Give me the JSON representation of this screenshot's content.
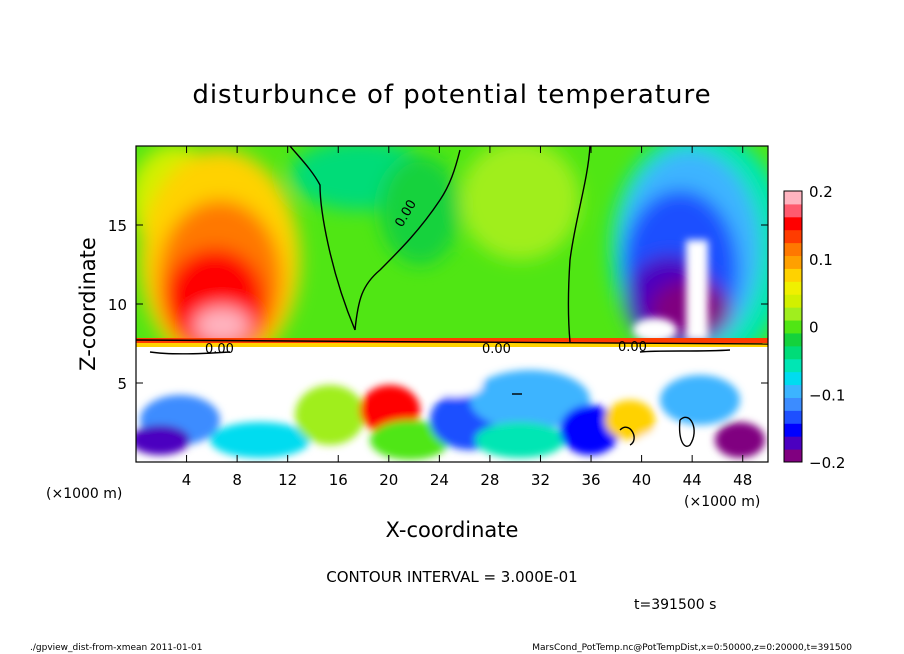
{
  "chart_data": {
    "type": "heatmap",
    "title": "disturbunce of potential temperature",
    "xlabel": "X-coordinate",
    "ylabel": "Z-coordinate",
    "x_unit_label": "(×1000 m)",
    "z_unit_label": "(×1000 m)",
    "xlim": [
      0,
      50
    ],
    "zlim": [
      0,
      20
    ],
    "x_ticks": [
      4,
      8,
      12,
      16,
      20,
      24,
      28,
      32,
      36,
      40,
      44,
      48
    ],
    "z_ticks": [
      5,
      10,
      15
    ],
    "colorbar": {
      "range": [
        -0.2,
        0.2
      ],
      "tick_labels": [
        "0.2",
        "0.1",
        "0",
        "−0.1",
        "−0.2"
      ],
      "tick_values": [
        0.2,
        0.1,
        0,
        -0.1,
        -0.2
      ],
      "colors": [
        "#800080",
        "#4b00c0",
        "#0000ff",
        "#1e50ff",
        "#3c8cff",
        "#3cb4ff",
        "#00dcf0",
        "#00e6b4",
        "#00dc78",
        "#14d23c",
        "#50e614",
        "#a0ee1e",
        "#d2f000",
        "#f0f000",
        "#ffd200",
        "#ffa000",
        "#ff7800",
        "#ff3c00",
        "#ff0000",
        "#ff5a6e",
        "#ffb4c0"
      ]
    },
    "contour_interval_text": "CONTOUR INTERVAL = 3.000E-01",
    "contour_labels": [
      "0.00",
      "0.00",
      "0.00",
      "0.00"
    ]
  },
  "time_label": "t=391500 s",
  "footer": {
    "left": "./gpview_dist-from-xmean  2011-01-01",
    "right": "MarsCond_PotTemp.nc@PotTempDist,x=0:50000,z=0:20000,t=391500"
  }
}
